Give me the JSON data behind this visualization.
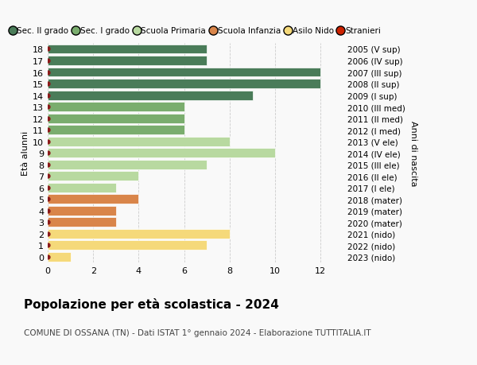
{
  "ages": [
    18,
    17,
    16,
    15,
    14,
    13,
    12,
    11,
    10,
    9,
    8,
    7,
    6,
    5,
    4,
    3,
    2,
    1,
    0
  ],
  "right_labels": [
    "2005 (V sup)",
    "2006 (IV sup)",
    "2007 (III sup)",
    "2008 (II sup)",
    "2009 (I sup)",
    "2010 (III med)",
    "2011 (II med)",
    "2012 (I med)",
    "2013 (V ele)",
    "2014 (IV ele)",
    "2015 (III ele)",
    "2016 (II ele)",
    "2017 (I ele)",
    "2018 (mater)",
    "2019 (mater)",
    "2020 (mater)",
    "2021 (nido)",
    "2022 (nido)",
    "2023 (nido)"
  ],
  "bar_values": [
    7,
    7,
    12,
    12,
    9,
    6,
    6,
    6,
    8,
    10,
    7,
    4,
    3,
    4,
    3,
    3,
    8,
    7,
    1
  ],
  "bar_colors": [
    "#4a7c59",
    "#4a7c59",
    "#4a7c59",
    "#4a7c59",
    "#4a7c59",
    "#7aad6e",
    "#7aad6e",
    "#7aad6e",
    "#b8d9a0",
    "#b8d9a0",
    "#b8d9a0",
    "#b8d9a0",
    "#b8d9a0",
    "#d9854a",
    "#d9854a",
    "#d9854a",
    "#f5d97a",
    "#f5d97a",
    "#f5d97a"
  ],
  "dot_color": "#8b1a1a",
  "xlim": [
    0,
    13
  ],
  "ylim": [
    -0.5,
    18.5
  ],
  "ylabel_left": "Età alunni",
  "ylabel_right": "Anni di nascita",
  "title": "Popolazione per età scolastica - 2024",
  "subtitle": "COMUNE DI OSSANA (TN) - Dati ISTAT 1° gennaio 2024 - Elaborazione TUTTITALIA.IT",
  "legend_labels": [
    "Sec. II grado",
    "Sec. I grado",
    "Scuola Primaria",
    "Scuola Infanzia",
    "Asilo Nido",
    "Stranieri"
  ],
  "legend_colors": [
    "#4a7c59",
    "#7aad6e",
    "#b8d9a0",
    "#d9854a",
    "#f5d97a",
    "#cc2200"
  ],
  "grid_color": "#cccccc",
  "bg_color": "#f9f9f9",
  "bar_height": 0.82,
  "xticks": [
    0,
    2,
    4,
    6,
    8,
    10,
    12
  ],
  "title_fontsize": 11,
  "subtitle_fontsize": 7.5,
  "tick_fontsize": 8,
  "label_fontsize": 8,
  "legend_fontsize": 7.5
}
